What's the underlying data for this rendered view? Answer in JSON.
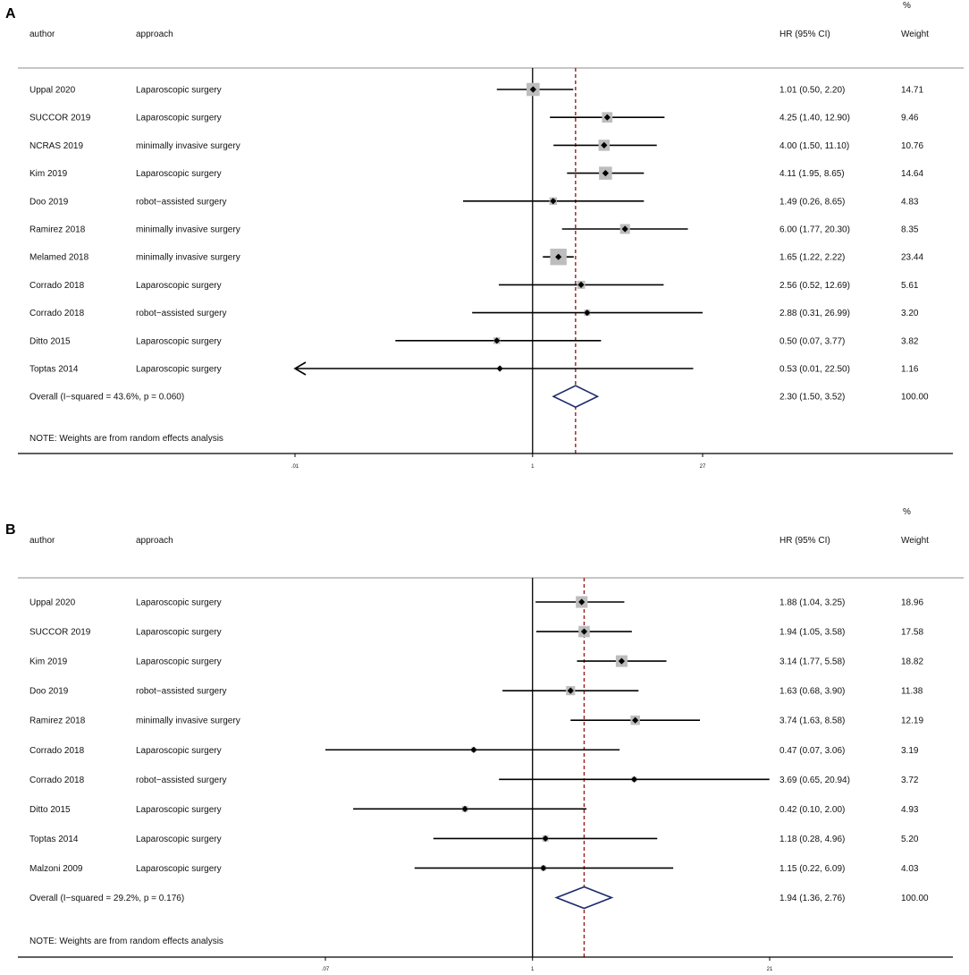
{
  "colors": {
    "sep": "#b3b3b3",
    "axis": "#000000",
    "ci": "#000000",
    "box": "#bdbdbd",
    "point": "#000000",
    "overall_line": "#9a1c1c",
    "diamond": "#1c2a6b"
  },
  "chart_data": [
    {
      "type": "forest",
      "panel": "A",
      "headers": {
        "author": "author",
        "approach": "approach",
        "hr": "HR (95% CI)",
        "pct": "%",
        "weight": "Weight"
      },
      "scale": "log",
      "xlim": [
        0.0036,
        320
      ],
      "ticks": [
        {
          "v": 0.01,
          "label": ".01"
        },
        {
          "v": 1,
          "label": "1"
        },
        {
          "v": 27,
          "label": "27"
        }
      ],
      "studies": [
        {
          "author": "Uppal 2020",
          "approach": "Laparoscopic surgery",
          "hr": 1.01,
          "lo": 0.5,
          "hi": 2.2,
          "ci_text": "1.01 (0.50, 2.20)",
          "weight": 14.71,
          "weight_text": "14.71"
        },
        {
          "author": "SUCCOR 2019",
          "approach": "Laparoscopic surgery",
          "hr": 4.25,
          "lo": 1.4,
          "hi": 12.9,
          "ci_text": "4.25 (1.40, 12.90)",
          "weight": 9.46,
          "weight_text": "9.46"
        },
        {
          "author": "NCRAS 2019",
          "approach": "minimally invasive surgery",
          "hr": 4.0,
          "lo": 1.5,
          "hi": 11.1,
          "ci_text": "4.00 (1.50, 11.10)",
          "weight": 10.76,
          "weight_text": "10.76"
        },
        {
          "author": "Kim 2019",
          "approach": "Laparoscopic surgery",
          "hr": 4.11,
          "lo": 1.95,
          "hi": 8.65,
          "ci_text": "4.11 (1.95, 8.65)",
          "weight": 14.64,
          "weight_text": "14.64"
        },
        {
          "author": "Doo 2019",
          "approach": "robot−assisted surgery",
          "hr": 1.49,
          "lo": 0.26,
          "hi": 8.65,
          "ci_text": "1.49 (0.26, 8.65)",
          "weight": 4.83,
          "weight_text": "4.83"
        },
        {
          "author": "Ramirez 2018",
          "approach": "minimally invasive surgery",
          "hr": 6.0,
          "lo": 1.77,
          "hi": 20.3,
          "ci_text": "6.00 (1.77, 20.30)",
          "weight": 8.35,
          "weight_text": "8.35"
        },
        {
          "author": "Melamed 2018",
          "approach": "minimally invasive surgery",
          "hr": 1.65,
          "lo": 1.22,
          "hi": 2.22,
          "ci_text": "1.65 (1.22, 2.22)",
          "weight": 23.44,
          "weight_text": "23.44"
        },
        {
          "author": "Corrado 2018",
          "approach": "Laparoscopic surgery",
          "hr": 2.56,
          "lo": 0.52,
          "hi": 12.69,
          "ci_text": "2.56 (0.52, 12.69)",
          "weight": 5.61,
          "weight_text": "5.61"
        },
        {
          "author": "Corrado 2018",
          "approach": "robot−assisted surgery",
          "hr": 2.88,
          "lo": 0.31,
          "hi": 26.99,
          "ci_text": "2.88 (0.31, 26.99)",
          "weight": 3.2,
          "weight_text": "3.20"
        },
        {
          "author": "Ditto 2015",
          "approach": "Laparoscopic surgery",
          "hr": 0.5,
          "lo": 0.07,
          "hi": 3.77,
          "ci_text": "0.50 (0.07, 3.77)",
          "weight": 3.82,
          "weight_text": "3.82"
        },
        {
          "author": "Toptas 2014",
          "approach": "Laparoscopic surgery",
          "hr": 0.53,
          "lo": 0.01,
          "hi": 22.5,
          "ci_text": "0.53 (0.01, 22.50)",
          "weight": 1.16,
          "weight_text": "1.16",
          "clipped_left": true
        }
      ],
      "overall": {
        "label": "Overall  (I−squared = 43.6%, p = 0.060)",
        "hr": 2.3,
        "lo": 1.5,
        "hi": 3.52,
        "ci_text": "2.30 (1.50, 3.52)",
        "weight_text": "100.00"
      },
      "note": "NOTE: Weights are from random effects analysis"
    },
    {
      "type": "forest",
      "panel": "B",
      "headers": {
        "author": "author",
        "approach": "approach",
        "hr": "HR (95% CI)",
        "pct": "%",
        "weight": "Weight"
      },
      "scale": "log",
      "xlim": [
        0.0085,
        120
      ],
      "ticks": [
        {
          "v": 0.07,
          "label": ".07"
        },
        {
          "v": 1,
          "label": "1"
        },
        {
          "v": 21,
          "label": "21"
        }
      ],
      "studies": [
        {
          "author": "Uppal 2020",
          "approach": "Laparoscopic surgery",
          "hr": 1.88,
          "lo": 1.04,
          "hi": 3.25,
          "ci_text": "1.88 (1.04, 3.25)",
          "weight": 18.96,
          "weight_text": "18.96"
        },
        {
          "author": "SUCCOR 2019",
          "approach": "Laparoscopic surgery",
          "hr": 1.94,
          "lo": 1.05,
          "hi": 3.58,
          "ci_text": "1.94 (1.05, 3.58)",
          "weight": 17.58,
          "weight_text": "17.58"
        },
        {
          "author": "Kim 2019",
          "approach": "Laparoscopic surgery",
          "hr": 3.14,
          "lo": 1.77,
          "hi": 5.58,
          "ci_text": "3.14 (1.77, 5.58)",
          "weight": 18.82,
          "weight_text": "18.82"
        },
        {
          "author": "Doo 2019",
          "approach": "robot−assisted surgery",
          "hr": 1.63,
          "lo": 0.68,
          "hi": 3.9,
          "ci_text": "1.63 (0.68, 3.90)",
          "weight": 11.38,
          "weight_text": "11.38"
        },
        {
          "author": "Ramirez 2018",
          "approach": "minimally invasive surgery",
          "hr": 3.74,
          "lo": 1.63,
          "hi": 8.58,
          "ci_text": "3.74 (1.63, 8.58)",
          "weight": 12.19,
          "weight_text": "12.19"
        },
        {
          "author": "Corrado 2018",
          "approach": "Laparoscopic surgery",
          "hr": 0.47,
          "lo": 0.07,
          "hi": 3.06,
          "ci_text": "0.47 (0.07, 3.06)",
          "weight": 3.19,
          "weight_text": "3.19"
        },
        {
          "author": "Corrado 2018",
          "approach": "robot−assisted surgery",
          "hr": 3.69,
          "lo": 0.65,
          "hi": 20.94,
          "ci_text": "3.69 (0.65, 20.94)",
          "weight": 3.72,
          "weight_text": "3.72"
        },
        {
          "author": "Ditto 2015",
          "approach": "Laparoscopic surgery",
          "hr": 0.42,
          "lo": 0.1,
          "hi": 2.0,
          "ci_text": "0.42 (0.10, 2.00)",
          "weight": 4.93,
          "weight_text": "4.93"
        },
        {
          "author": "Toptas 2014",
          "approach": "Laparoscopic surgery",
          "hr": 1.18,
          "lo": 0.28,
          "hi": 4.96,
          "ci_text": "1.18 (0.28, 4.96)",
          "weight": 5.2,
          "weight_text": "5.20"
        },
        {
          "author": "Malzoni 2009",
          "approach": "Laparoscopic surgery",
          "hr": 1.15,
          "lo": 0.22,
          "hi": 6.09,
          "ci_text": "1.15 (0.22, 6.09)",
          "weight": 4.03,
          "weight_text": "4.03"
        }
      ],
      "overall": {
        "label": "Overall  (I−squared = 29.2%, p = 0.176)",
        "hr": 1.94,
        "lo": 1.36,
        "hi": 2.76,
        "ci_text": "1.94 (1.36, 2.76)",
        "weight_text": "100.00"
      },
      "note": "NOTE: Weights are from random effects analysis"
    }
  ]
}
